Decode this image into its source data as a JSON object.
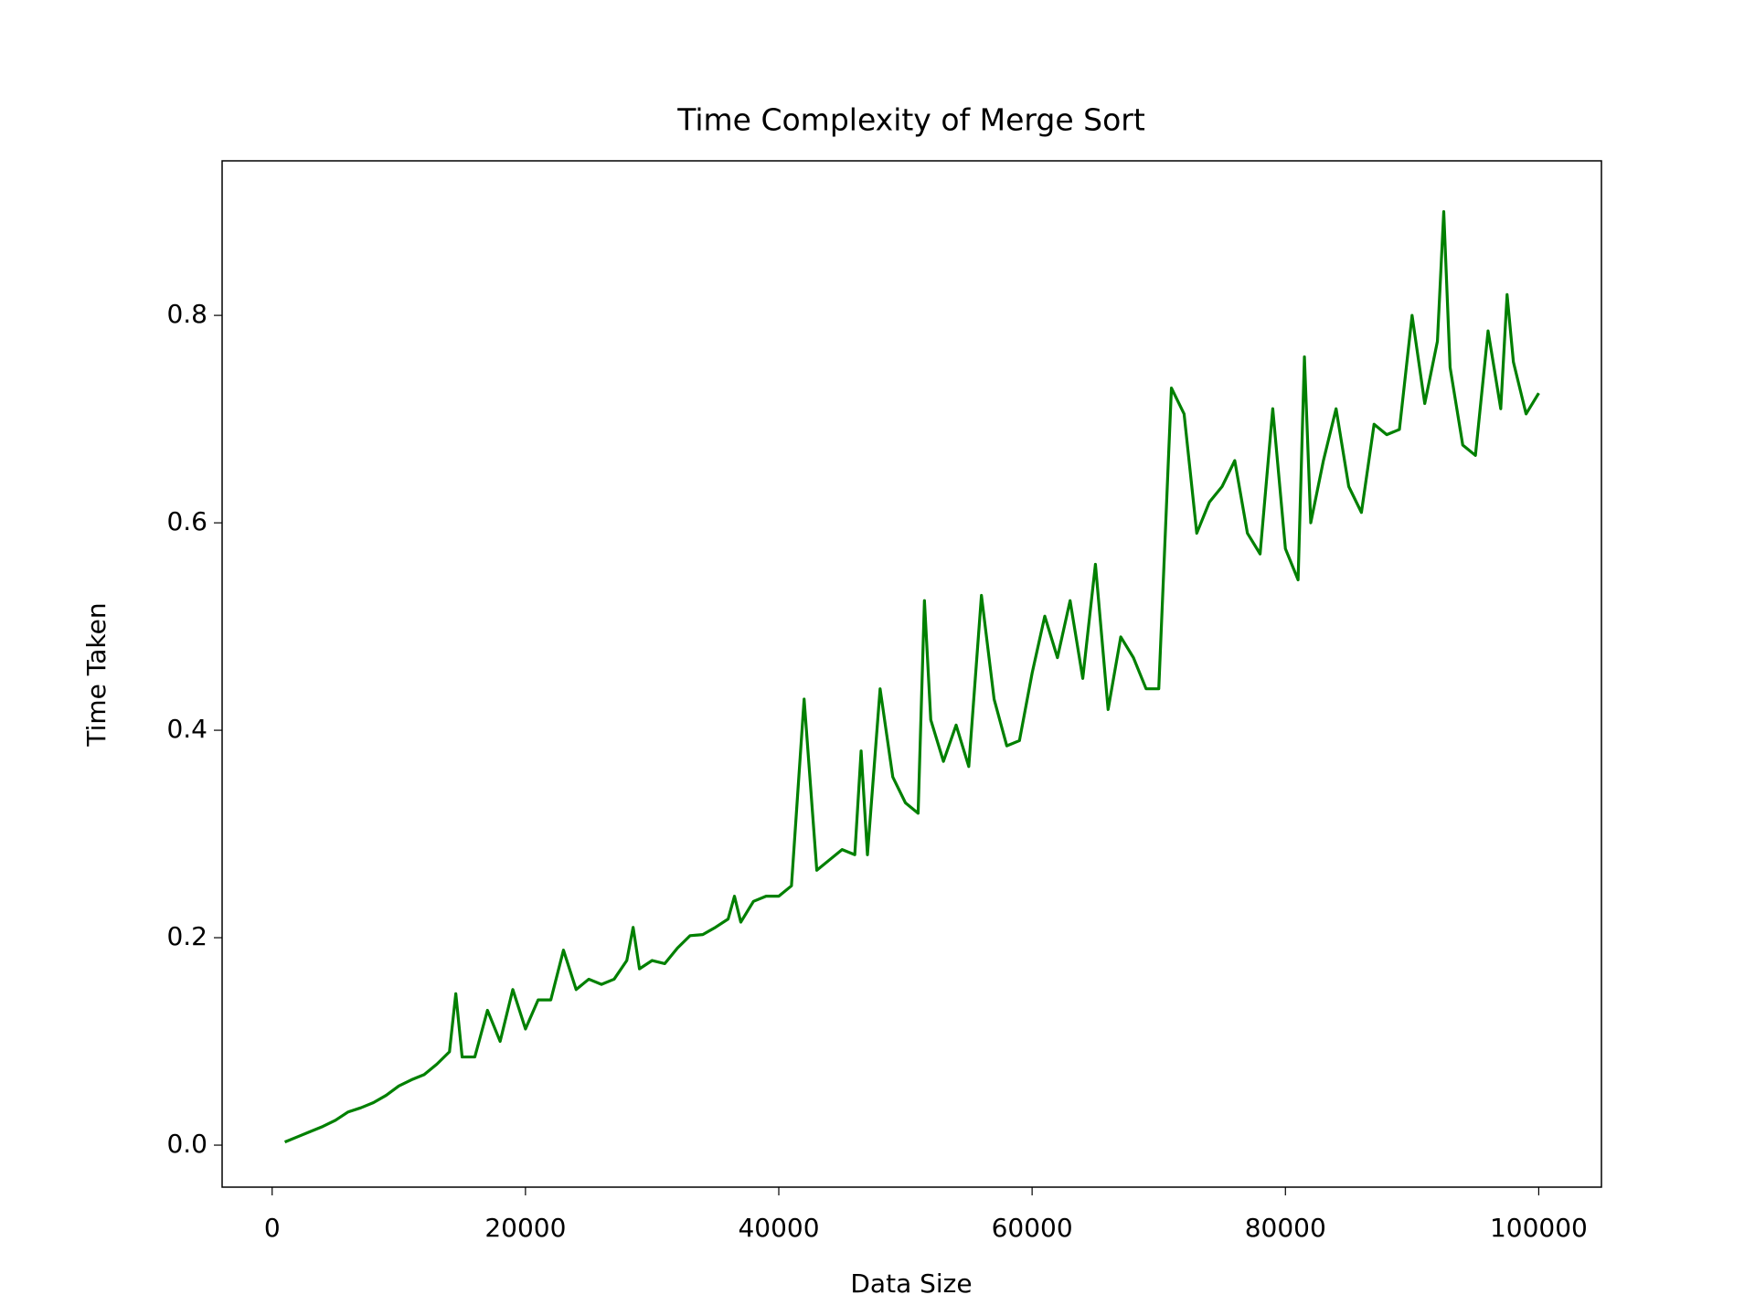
{
  "chart_data": {
    "type": "line",
    "title": "Time Complexity of Merge Sort",
    "x_label": "Data Size",
    "y_label": "Time Taken",
    "x": [
      1000,
      2000,
      3000,
      4000,
      5000,
      6000,
      7000,
      8000,
      9000,
      10000,
      11000,
      12000,
      13000,
      14000,
      14500,
      15000,
      16000,
      17000,
      18000,
      19000,
      20000,
      21000,
      22000,
      23000,
      24000,
      25000,
      26000,
      27000,
      28000,
      28500,
      29000,
      30000,
      31000,
      32000,
      33000,
      34000,
      35000,
      36000,
      36500,
      37000,
      38000,
      39000,
      40000,
      41000,
      42000,
      43000,
      44000,
      45000,
      46000,
      46500,
      47000,
      48000,
      49000,
      50000,
      51000,
      51500,
      52000,
      53000,
      54000,
      55000,
      56000,
      57000,
      58000,
      59000,
      60000,
      61000,
      62000,
      63000,
      64000,
      65000,
      66000,
      67000,
      68000,
      69000,
      70000,
      71000,
      72000,
      73000,
      74000,
      75000,
      76000,
      77000,
      78000,
      79000,
      80000,
      81000,
      81500,
      82000,
      83000,
      84000,
      85000,
      86000,
      87000,
      88000,
      89000,
      90000,
      91000,
      92000,
      92500,
      93000,
      94000,
      95000,
      96000,
      97000,
      97500,
      98000,
      99000,
      100000
    ],
    "series": [
      {
        "name": "Merge Sort",
        "color": "#008000",
        "values": [
          0.003,
          0.008,
          0.013,
          0.018,
          0.024,
          0.032,
          0.036,
          0.041,
          0.048,
          0.057,
          0.063,
          0.068,
          0.078,
          0.09,
          0.146,
          0.085,
          0.085,
          0.13,
          0.1,
          0.15,
          0.112,
          0.14,
          0.14,
          0.188,
          0.15,
          0.16,
          0.155,
          0.16,
          0.178,
          0.21,
          0.17,
          0.178,
          0.175,
          0.19,
          0.202,
          0.203,
          0.21,
          0.218,
          0.24,
          0.215,
          0.235,
          0.24,
          0.24,
          0.25,
          0.43,
          0.265,
          0.275,
          0.285,
          0.28,
          0.38,
          0.28,
          0.44,
          0.355,
          0.33,
          0.32,
          0.525,
          0.41,
          0.37,
          0.405,
          0.365,
          0.53,
          0.43,
          0.385,
          0.39,
          0.455,
          0.51,
          0.47,
          0.525,
          0.45,
          0.56,
          0.42,
          0.49,
          0.47,
          0.44,
          0.44,
          0.73,
          0.705,
          0.59,
          0.62,
          0.635,
          0.66,
          0.59,
          0.57,
          0.71,
          0.575,
          0.545,
          0.76,
          0.6,
          0.66,
          0.71,
          0.635,
          0.61,
          0.695,
          0.685,
          0.69,
          0.8,
          0.715,
          0.775,
          0.9,
          0.75,
          0.675,
          0.665,
          0.785,
          0.71,
          0.82,
          0.755,
          0.705,
          0.725
        ]
      }
    ],
    "xlim": [
      -3950,
      104950
    ],
    "ylim": [
      -0.0405,
      0.949
    ],
    "xticks": [
      0,
      20000,
      40000,
      60000,
      80000,
      100000
    ],
    "yticks": [
      {
        "value": 0,
        "label": "0.0"
      },
      0.2,
      0.4,
      0.6,
      0.8
    ]
  }
}
